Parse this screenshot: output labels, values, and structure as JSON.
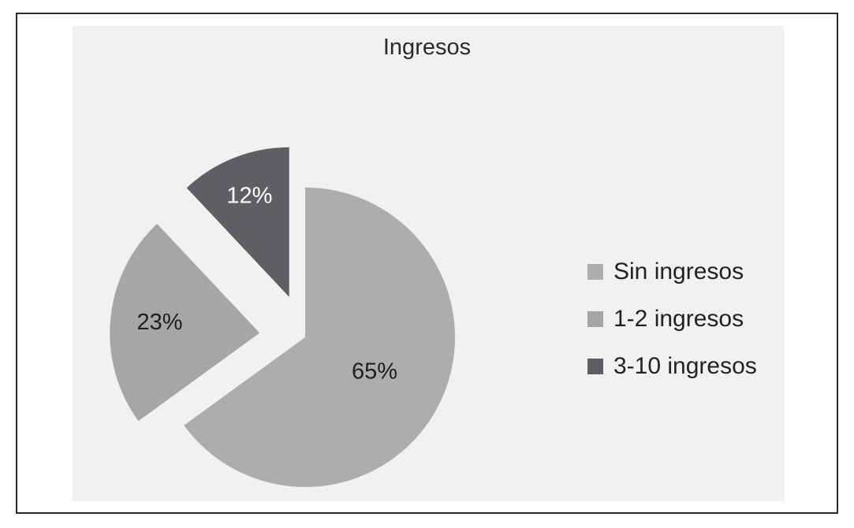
{
  "chart_data": {
    "type": "pie",
    "title": "Ingresos",
    "slices": [
      {
        "name": "Sin ingresos",
        "value": 65,
        "label": "65%",
        "color": "#adadad",
        "label_color": "#1e1e1e"
      },
      {
        "name": "1-2 ingresos",
        "value": 23,
        "label": "23%",
        "color": "#a6a6a6",
        "label_color": "#1e1e1e"
      },
      {
        "name": "3-10 ingresos",
        "value": 12,
        "label": "12%",
        "color": "#5f5f63",
        "label_color": "#ffffff"
      }
    ],
    "exploded": true,
    "legend_position": "right"
  }
}
